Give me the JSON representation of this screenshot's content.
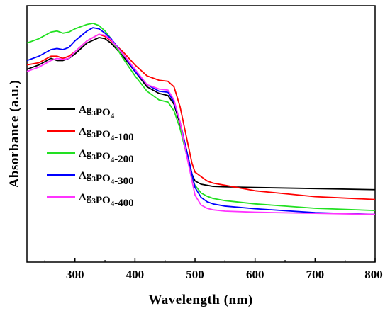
{
  "chart_data": {
    "type": "line",
    "xlabel": "Wavelength (nm)",
    "ylabel": "Absorbance (a.u.)",
    "xlim": [
      220,
      800
    ],
    "ylim": [
      0,
      1
    ],
    "x_ticks": [
      300,
      400,
      500,
      600,
      700,
      800
    ],
    "y_ticks_shown": false,
    "legend_position": "center-left",
    "series": [
      {
        "name": "Ag3PO4",
        "label_base": "Ag",
        "label_sub1": "3",
        "label_mid": "PO",
        "label_sub2": "4",
        "label_suffix": "",
        "color": "#000000",
        "x": [
          220,
          240,
          260,
          270,
          280,
          290,
          300,
          320,
          340,
          350,
          360,
          380,
          400,
          420,
          440,
          455,
          465,
          475,
          485,
          495,
          500,
          510,
          520,
          530,
          550,
          600,
          700,
          800
        ],
        "y": [
          0.8,
          0.82,
          0.85,
          0.84,
          0.84,
          0.85,
          0.87,
          0.92,
          0.945,
          0.94,
          0.92,
          0.86,
          0.79,
          0.72,
          0.69,
          0.68,
          0.64,
          0.55,
          0.44,
          0.32,
          0.29,
          0.275,
          0.27,
          0.265,
          0.263,
          0.26,
          0.255,
          0.25
        ]
      },
      {
        "name": "Ag3PO4-100",
        "label_base": "Ag",
        "label_sub1": "3",
        "label_mid": "PO",
        "label_sub2": "4",
        "label_suffix": "-100",
        "color": "#ff0000",
        "x": [
          220,
          240,
          260,
          270,
          280,
          290,
          300,
          320,
          340,
          350,
          360,
          380,
          400,
          420,
          440,
          455,
          465,
          475,
          485,
          495,
          500,
          510,
          520,
          530,
          550,
          600,
          700,
          800
        ],
        "y": [
          0.82,
          0.83,
          0.86,
          0.86,
          0.85,
          0.86,
          0.88,
          0.93,
          0.96,
          0.95,
          0.93,
          0.88,
          0.82,
          0.77,
          0.75,
          0.745,
          0.72,
          0.63,
          0.5,
          0.37,
          0.33,
          0.31,
          0.29,
          0.28,
          0.27,
          0.245,
          0.218,
          0.205
        ]
      },
      {
        "name": "Ag3PO4-200",
        "label_base": "Ag",
        "label_sub1": "3",
        "label_mid": "PO",
        "label_sub2": "4",
        "label_suffix": "-200",
        "color": "#22e022",
        "x": [
          220,
          240,
          260,
          270,
          280,
          290,
          300,
          320,
          330,
          340,
          350,
          360,
          380,
          400,
          420,
          440,
          455,
          465,
          475,
          485,
          495,
          500,
          510,
          520,
          530,
          550,
          600,
          700,
          800
        ],
        "y": [
          0.92,
          0.94,
          0.97,
          0.975,
          0.965,
          0.97,
          0.985,
          1.005,
          1.01,
          1.0,
          0.975,
          0.94,
          0.85,
          0.77,
          0.7,
          0.66,
          0.65,
          0.61,
          0.53,
          0.42,
          0.3,
          0.27,
          0.235,
          0.22,
          0.21,
          0.2,
          0.185,
          0.165,
          0.155
        ]
      },
      {
        "name": "Ag3PO4-300",
        "label_base": "Ag",
        "label_sub1": "3",
        "label_mid": "PO",
        "label_sub2": "4",
        "label_suffix": "-300",
        "color": "#0000ff",
        "x": [
          220,
          240,
          260,
          270,
          280,
          290,
          300,
          320,
          330,
          340,
          350,
          360,
          380,
          400,
          420,
          440,
          455,
          465,
          475,
          485,
          495,
          500,
          510,
          520,
          530,
          550,
          600,
          700,
          800
        ],
        "y": [
          0.84,
          0.86,
          0.89,
          0.895,
          0.89,
          0.9,
          0.93,
          0.975,
          0.99,
          0.985,
          0.965,
          0.94,
          0.87,
          0.79,
          0.73,
          0.7,
          0.695,
          0.65,
          0.56,
          0.44,
          0.32,
          0.26,
          0.215,
          0.195,
          0.185,
          0.175,
          0.163,
          0.145,
          0.137
        ]
      },
      {
        "name": "Ag3PO4-400",
        "label_base": "Ag",
        "label_sub1": "3",
        "label_mid": "PO",
        "label_sub2": "4",
        "label_suffix": "-400",
        "color": "#ff33ff",
        "x": [
          220,
          240,
          260,
          270,
          280,
          290,
          300,
          320,
          340,
          350,
          360,
          380,
          400,
          420,
          440,
          455,
          465,
          475,
          485,
          495,
          500,
          510,
          520,
          530,
          550,
          600,
          700,
          800
        ],
        "y": [
          0.79,
          0.81,
          0.84,
          0.85,
          0.845,
          0.85,
          0.88,
          0.93,
          0.96,
          0.955,
          0.935,
          0.87,
          0.8,
          0.73,
          0.71,
          0.705,
          0.66,
          0.56,
          0.42,
          0.29,
          0.225,
          0.18,
          0.165,
          0.158,
          0.152,
          0.147,
          0.142,
          0.137
        ]
      }
    ]
  }
}
